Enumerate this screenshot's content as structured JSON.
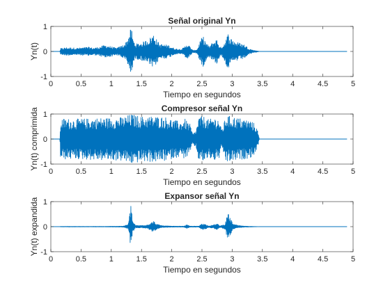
{
  "colors": {
    "signal": "#0072BD",
    "axes": "#262626"
  },
  "chart_data": [
    {
      "type": "line",
      "title": "Señal original Yn",
      "xlabel": "Tiempo en segundos",
      "ylabel": "Yn(t)",
      "xlim": [
        0,
        5
      ],
      "ylim": [
        -1,
        1
      ],
      "xticks": [
        0,
        0.5,
        1,
        1.5,
        2,
        2.5,
        3,
        3.5,
        4,
        4.5,
        5
      ],
      "xtick_labels": [
        "0",
        "0.5",
        "1",
        "1.5",
        "2",
        "2.5",
        "3",
        "3.5",
        "4",
        "4.5",
        "5"
      ],
      "yticks": [
        -1,
        0,
        1
      ],
      "ytick_labels": [
        "-1",
        "0",
        "1"
      ],
      "signal_end": 4.9,
      "envelope": [
        [
          0,
          0
        ],
        [
          0.15,
          0
        ],
        [
          0.16,
          0.12
        ],
        [
          0.25,
          0.16
        ],
        [
          0.35,
          0.15
        ],
        [
          0.45,
          0.14
        ],
        [
          0.55,
          0.16
        ],
        [
          0.62,
          0.18
        ],
        [
          0.7,
          0.14
        ],
        [
          0.8,
          0.18
        ],
        [
          0.9,
          0.26
        ],
        [
          1.0,
          0.2
        ],
        [
          1.07,
          0.14
        ],
        [
          1.13,
          0.18
        ],
        [
          1.18,
          0.24
        ],
        [
          1.25,
          0.4
        ],
        [
          1.31,
          0.8
        ],
        [
          1.33,
          1.0
        ],
        [
          1.36,
          0.5
        ],
        [
          1.4,
          0.3
        ],
        [
          1.5,
          0.35
        ],
        [
          1.62,
          0.5
        ],
        [
          1.7,
          0.7
        ],
        [
          1.75,
          0.48
        ],
        [
          1.8,
          0.3
        ],
        [
          1.88,
          0.28
        ],
        [
          1.95,
          0.25
        ],
        [
          2.0,
          0.18
        ],
        [
          2.05,
          0.12
        ],
        [
          2.1,
          0.1
        ],
        [
          2.15,
          0.1
        ],
        [
          2.2,
          0.15
        ],
        [
          2.25,
          0.32
        ],
        [
          2.3,
          0.2
        ],
        [
          2.35,
          0.04
        ],
        [
          2.42,
          0.08
        ],
        [
          2.48,
          0.5
        ],
        [
          2.52,
          0.6
        ],
        [
          2.57,
          0.35
        ],
        [
          2.62,
          0.2
        ],
        [
          2.68,
          0.38
        ],
        [
          2.75,
          0.5
        ],
        [
          2.8,
          0.15
        ],
        [
          2.86,
          0.3
        ],
        [
          2.93,
          0.72
        ],
        [
          2.97,
          0.55
        ],
        [
          3.05,
          0.4
        ],
        [
          3.15,
          0.32
        ],
        [
          3.2,
          0.28
        ],
        [
          3.28,
          0.12
        ],
        [
          3.35,
          0.05
        ],
        [
          3.42,
          0.02
        ],
        [
          3.45,
          0
        ]
      ]
    },
    {
      "type": "line",
      "title": "Compresor señal Yn",
      "xlabel": "Tiempo en segundos",
      "ylabel": "Yn(t) comprimida",
      "xlim": [
        0,
        5
      ],
      "ylim": [
        -1,
        1
      ],
      "xticks": [
        0,
        0.5,
        1,
        1.5,
        2,
        2.5,
        3,
        3.5,
        4,
        4.5,
        5
      ],
      "xtick_labels": [
        "0",
        "0.5",
        "1",
        "1.5",
        "2",
        "2.5",
        "3",
        "3.5",
        "4",
        "4.5",
        "5"
      ],
      "yticks": [
        -1,
        0,
        1
      ],
      "ytick_labels": [
        "-1",
        "0",
        "1"
      ],
      "signal_end": 4.9,
      "envelope": [
        [
          0,
          0
        ],
        [
          0.15,
          0
        ],
        [
          0.16,
          0.8
        ],
        [
          0.2,
          0.82
        ],
        [
          0.4,
          0.8
        ],
        [
          0.6,
          0.82
        ],
        [
          0.8,
          0.85
        ],
        [
          1.0,
          0.85
        ],
        [
          1.2,
          0.88
        ],
        [
          1.33,
          1.0
        ],
        [
          1.5,
          0.9
        ],
        [
          1.7,
          0.92
        ],
        [
          1.9,
          0.88
        ],
        [
          2.05,
          0.75
        ],
        [
          2.15,
          0.7
        ],
        [
          2.22,
          0.8
        ],
        [
          2.3,
          0.6
        ],
        [
          2.35,
          0.2
        ],
        [
          2.4,
          0.35
        ],
        [
          2.45,
          0.9
        ],
        [
          2.55,
          0.9
        ],
        [
          2.62,
          0.75
        ],
        [
          2.68,
          0.88
        ],
        [
          2.78,
          0.82
        ],
        [
          2.82,
          0.4
        ],
        [
          2.86,
          0.6
        ],
        [
          2.9,
          0.95
        ],
        [
          3.0,
          0.9
        ],
        [
          3.1,
          0.85
        ],
        [
          3.2,
          0.8
        ],
        [
          3.3,
          0.75
        ],
        [
          3.38,
          0.6
        ],
        [
          3.42,
          0.35
        ],
        [
          3.45,
          0
        ]
      ]
    },
    {
      "type": "line",
      "title": "Expansor señal Yn",
      "xlabel": "Tiempo en segundos",
      "ylabel": "Yn(t) expandida",
      "xlim": [
        0,
        5
      ],
      "ylim": [
        -1,
        1
      ],
      "xticks": [
        0,
        0.5,
        1,
        1.5,
        2,
        2.5,
        3,
        3.5,
        4,
        4.5,
        5
      ],
      "xtick_labels": [
        "0",
        "0.5",
        "1",
        "1.5",
        "2",
        "2.5",
        "3",
        "3.5",
        "4",
        "4.5",
        "5"
      ],
      "yticks": [
        -1,
        0,
        1
      ],
      "ytick_labels": [
        "-1",
        "0",
        "1"
      ],
      "signal_end": 4.9,
      "envelope": [
        [
          0,
          0
        ],
        [
          0.15,
          0
        ],
        [
          0.16,
          0.01
        ],
        [
          0.9,
          0.01
        ],
        [
          1.2,
          0.02
        ],
        [
          1.28,
          0.1
        ],
        [
          1.31,
          0.6
        ],
        [
          1.33,
          1.0
        ],
        [
          1.35,
          0.25
        ],
        [
          1.4,
          0.05
        ],
        [
          1.5,
          0.05
        ],
        [
          1.6,
          0.08
        ],
        [
          1.7,
          0.22
        ],
        [
          1.75,
          0.1
        ],
        [
          1.85,
          0.04
        ],
        [
          2.0,
          0.02
        ],
        [
          2.2,
          0.02
        ],
        [
          2.25,
          0.08
        ],
        [
          2.3,
          0.02
        ],
        [
          2.45,
          0.02
        ],
        [
          2.5,
          0.14
        ],
        [
          2.55,
          0.1
        ],
        [
          2.62,
          0.03
        ],
        [
          2.7,
          0.08
        ],
        [
          2.75,
          0.12
        ],
        [
          2.8,
          0.03
        ],
        [
          2.88,
          0.1
        ],
        [
          2.93,
          0.55
        ],
        [
          2.96,
          0.38
        ],
        [
          3.02,
          0.1
        ],
        [
          3.1,
          0.05
        ],
        [
          3.2,
          0.02
        ],
        [
          3.45,
          0
        ]
      ]
    }
  ]
}
